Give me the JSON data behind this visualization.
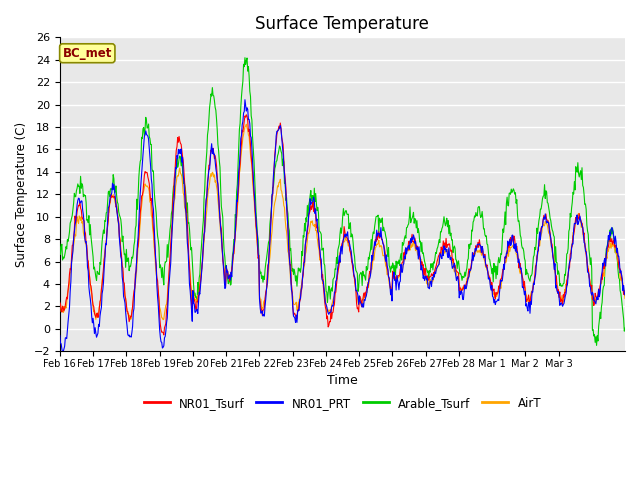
{
  "title": "Surface Temperature",
  "xlabel": "Time",
  "ylabel": "Surface Temperature (C)",
  "ylim": [
    -2,
    26
  ],
  "yticks": [
    -2,
    0,
    2,
    4,
    6,
    8,
    10,
    12,
    14,
    16,
    18,
    20,
    22,
    24,
    26
  ],
  "x_labels": [
    "Feb 16",
    "Feb 17",
    "Feb 18",
    "Feb 19",
    "Feb 20",
    "Feb 21",
    "Feb 22",
    "Feb 23",
    "Feb 24",
    "Feb 25",
    "Feb 26",
    "Feb 27",
    "Feb 28",
    "Mar 1",
    "Mar 2",
    "Mar 3"
  ],
  "annotation_text": "BC_met",
  "annotation_color": "#8B0000",
  "annotation_bg": "#FFFF99",
  "colors": {
    "NR01_Tsurf": "#FF0000",
    "NR01_PRT": "#0000FF",
    "Arable_Tsurf": "#00CC00",
    "AirT": "#FFA500"
  },
  "bg_color": "#E8E8E8",
  "grid_color": "#FFFFFF"
}
